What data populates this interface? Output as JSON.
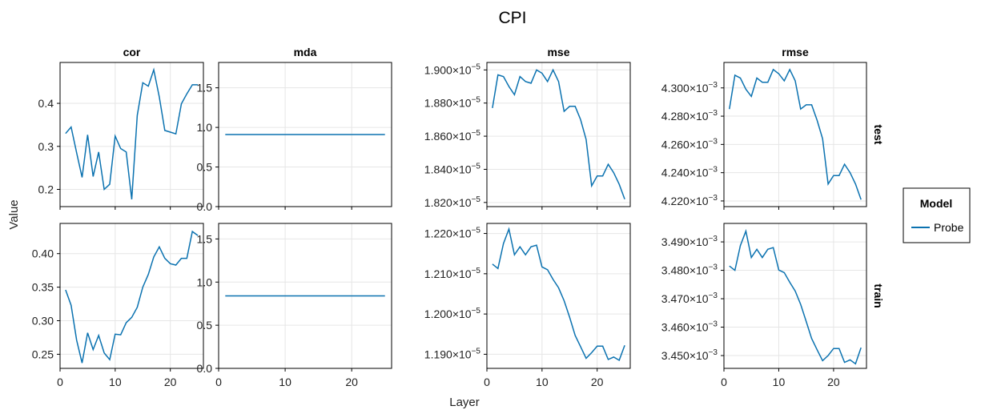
{
  "title": "CPI",
  "xlabel": "Layer",
  "ylabel": "Value",
  "legend": {
    "title": "Model",
    "entries": [
      "Probe"
    ],
    "placement": "right"
  },
  "colors": {
    "Probe": "#0b72b0"
  },
  "chart_data": {
    "type": "line",
    "facet_columns": [
      "cor",
      "mda",
      "mse",
      "rmse"
    ],
    "facet_rows": [
      "test",
      "train"
    ],
    "x": [
      1,
      2,
      3,
      4,
      5,
      6,
      7,
      8,
      9,
      10,
      11,
      12,
      13,
      14,
      15,
      16,
      17,
      18,
      19,
      20,
      21,
      22,
      23,
      24,
      25
    ],
    "xlim": [
      0,
      26
    ],
    "xticks": [
      0,
      10,
      20
    ],
    "grid": true,
    "panels": [
      {
        "col": "cor",
        "row": "test",
        "series": [
          {
            "name": "Probe",
            "values": [
              0.33,
              0.345,
              0.285,
              0.228,
              0.327,
              0.23,
              0.287,
              0.2,
              0.212,
              0.324,
              0.295,
              0.287,
              0.177,
              0.372,
              0.448,
              0.44,
              0.478,
              0.415,
              0.337,
              0.333,
              0.329,
              0.399,
              0.422,
              0.443,
              0.443
            ]
          }
        ],
        "ylim": [
          0.16,
          0.495
        ],
        "yticks": [
          0.2,
          0.3,
          0.4
        ],
        "yticklabels": [
          "0.2",
          "0.3",
          "0.4"
        ]
      },
      {
        "col": "mda",
        "row": "test",
        "series": [
          {
            "name": "Probe",
            "values": [
              0.91,
              0.91,
              0.91,
              0.91,
              0.91,
              0.91,
              0.91,
              0.91,
              0.91,
              0.91,
              0.91,
              0.91,
              0.91,
              0.91,
              0.91,
              0.91,
              0.91,
              0.91,
              0.91,
              0.91,
              0.91,
              0.91,
              0.91,
              0.91,
              0.91
            ]
          }
        ],
        "ylim": [
          0,
          1.82
        ],
        "yticks": [
          0,
          0.5,
          1.0,
          1.5
        ],
        "yticklabels": [
          "0.0",
          "0.5",
          "1.0",
          "1.5"
        ]
      },
      {
        "col": "mse",
        "row": "test",
        "series": [
          {
            "name": "Probe",
            "values": [
              1.877e-05,
              1.897e-05,
              1.896e-05,
              1.89e-05,
              1.885e-05,
              1.896e-05,
              1.893e-05,
              1.892e-05,
              1.9e-05,
              1.898e-05,
              1.893e-05,
              1.9e-05,
              1.893e-05,
              1.875e-05,
              1.878e-05,
              1.878e-05,
              1.87e-05,
              1.858e-05,
              1.83e-05,
              1.836e-05,
              1.836e-05,
              1.843e-05,
              1.838e-05,
              1.831e-05,
              1.822e-05
            ]
          }
        ],
        "ylim": [
          1.8175e-05,
          1.9045e-05
        ],
        "yticks": [
          1.82e-05,
          1.84e-05,
          1.86e-05,
          1.88e-05,
          1.9e-05
        ],
        "yticklabels": [
          "1.820",
          "1.840",
          "1.860",
          "1.880",
          "1.900"
        ],
        "yexp": "−5"
      },
      {
        "col": "rmse",
        "row": "test",
        "series": [
          {
            "name": "Probe",
            "values": [
              0.004285,
              0.004309,
              0.004307,
              0.004299,
              0.004294,
              0.004307,
              0.004304,
              0.004304,
              0.004313,
              0.00431,
              0.004305,
              0.004313,
              0.004305,
              0.004285,
              0.004288,
              0.004288,
              0.004277,
              0.004264,
              0.004232,
              0.004238,
              0.004238,
              0.004246,
              0.00424,
              0.004232,
              0.004221
            ]
          }
        ],
        "ylim": [
          0.004216,
          0.004318
        ],
        "yticks": [
          0.00422,
          0.00424,
          0.00426,
          0.00428,
          0.0043
        ],
        "yticklabels": [
          "4.220",
          "4.240",
          "4.260",
          "4.280",
          "4.300"
        ],
        "yexp": "−3"
      },
      {
        "col": "cor",
        "row": "train",
        "series": [
          {
            "name": "Probe",
            "values": [
              0.346,
              0.323,
              0.271,
              0.237,
              0.282,
              0.257,
              0.278,
              0.252,
              0.242,
              0.28,
              0.279,
              0.297,
              0.305,
              0.32,
              0.35,
              0.369,
              0.395,
              0.41,
              0.393,
              0.385,
              0.383,
              0.393,
              0.393,
              0.433,
              0.427
            ]
          }
        ],
        "ylim": [
          0.229,
          0.445
        ],
        "yticks": [
          0.25,
          0.3,
          0.35,
          0.4
        ],
        "yticklabels": [
          "0.25",
          "0.30",
          "0.35",
          "0.40"
        ]
      },
      {
        "col": "mda",
        "row": "train",
        "series": [
          {
            "name": "Probe",
            "values": [
              0.84,
              0.84,
              0.84,
              0.84,
              0.84,
              0.84,
              0.84,
              0.84,
              0.84,
              0.84,
              0.84,
              0.84,
              0.84,
              0.84,
              0.84,
              0.84,
              0.84,
              0.84,
              0.84,
              0.84,
              0.84,
              0.84,
              0.84,
              0.84,
              0.84
            ]
          }
        ],
        "ylim": [
          0,
          1.68
        ],
        "yticks": [
          0,
          0.5,
          1.0,
          1.5
        ],
        "yticklabels": [
          "0.0",
          "0.5",
          "1.0",
          "1.5"
        ]
      },
      {
        "col": "mse",
        "row": "train",
        "series": [
          {
            "name": "Probe",
            "values": [
              1.2124e-05,
              1.2113e-05,
              1.2175e-05,
              1.2211e-05,
              1.2147e-05,
              1.2167e-05,
              1.2147e-05,
              1.2167e-05,
              1.2171e-05,
              1.2117e-05,
              1.211e-05,
              1.2086e-05,
              1.2065e-05,
              1.2033e-05,
              1.1992e-05,
              1.1947e-05,
              1.1919e-05,
              1.189e-05,
              1.1904e-05,
              1.192e-05,
              1.192e-05,
              1.1887e-05,
              1.1893e-05,
              1.1885e-05,
              1.1922e-05
            ]
          }
        ],
        "ylim": [
          1.1865e-05,
          1.2225e-05
        ],
        "yticks": [
          1.19e-05,
          1.2e-05,
          1.21e-05,
          1.22e-05
        ],
        "yticklabels": [
          "1.190",
          "1.200",
          "1.210",
          "1.220"
        ],
        "yexp": "−5"
      },
      {
        "col": "rmse",
        "row": "train",
        "series": [
          {
            "name": "Probe",
            "values": [
              0.0034815,
              0.00348,
              0.0034887,
              0.0034938,
              0.0034845,
              0.0034874,
              0.0034845,
              0.0034874,
              0.003488,
              0.0034801,
              0.0034792,
              0.0034758,
              0.0034727,
              0.003468,
              0.003462,
              0.003456,
              0.003452,
              0.0034482,
              0.00345,
              0.0034525,
              0.0034525,
              0.0034476,
              0.0034485,
              0.0034471,
              0.0034528
            ]
          }
        ],
        "ylim": [
          0.0034455,
          0.0034965
        ],
        "yticks": [
          0.00345,
          0.00346,
          0.00347,
          0.00348,
          0.00349
        ],
        "yticklabels": [
          "3.450",
          "3.460",
          "3.470",
          "3.480",
          "3.490"
        ],
        "yexp": "−3"
      }
    ]
  }
}
